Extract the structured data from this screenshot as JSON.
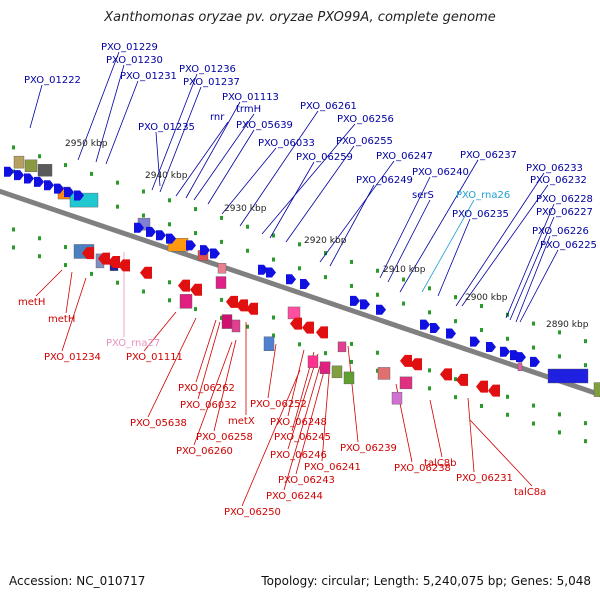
{
  "title": "Xanthomonas oryzae pv. oryzae PXO99A, complete genome",
  "accession": "Accession: NC_010717",
  "summary": "Topology: circular; Length: 5,240,075 bp; Genes: 5,048",
  "colors": {
    "backbone": "#808080",
    "forward_gene": "#1010e0",
    "reverse_gene": "#e01010",
    "forward_label": "#0000a0",
    "reverse_label": "#d00000",
    "rna_forward_label": "#20a0d0",
    "rna_reverse_label": "#e890c0",
    "tick": "#2a9a2a"
  },
  "kbp_ticks": [
    "2950 kbp",
    "2940 kbp",
    "2930 kbp",
    "2920 kbp",
    "2910 kbp",
    "2900 kbp",
    "2890 kbp"
  ],
  "forward_labels": [
    {
      "text": "PXO_01222",
      "kind": "gene"
    },
    {
      "text": "PXO_01229",
      "kind": "gene"
    },
    {
      "text": "PXO_01230",
      "kind": "gene"
    },
    {
      "text": "PXO_01231",
      "kind": "gene"
    },
    {
      "text": "PXO_01236",
      "kind": "gene"
    },
    {
      "text": "PXO_01237",
      "kind": "gene"
    },
    {
      "text": "PXO_01113",
      "kind": "gene"
    },
    {
      "text": "trmH",
      "kind": "gene"
    },
    {
      "text": "rnr",
      "kind": "gene"
    },
    {
      "text": "PXO_01235",
      "kind": "gene"
    },
    {
      "text": "PXO_05639",
      "kind": "gene"
    },
    {
      "text": "PXO_06261",
      "kind": "gene"
    },
    {
      "text": "PXO_06256",
      "kind": "gene"
    },
    {
      "text": "PXO_06033",
      "kind": "gene"
    },
    {
      "text": "PXO_06255",
      "kind": "gene"
    },
    {
      "text": "PXO_06259",
      "kind": "gene"
    },
    {
      "text": "PXO_06247",
      "kind": "gene"
    },
    {
      "text": "PXO_06237",
      "kind": "gene"
    },
    {
      "text": "PXO_06240",
      "kind": "gene"
    },
    {
      "text": "PXO_06233",
      "kind": "gene"
    },
    {
      "text": "PXO_06249",
      "kind": "gene"
    },
    {
      "text": "PXO_06232",
      "kind": "gene"
    },
    {
      "text": "PXO_rna26",
      "kind": "rna"
    },
    {
      "text": "serS",
      "kind": "gene"
    },
    {
      "text": "PXO_06228",
      "kind": "gene"
    },
    {
      "text": "PXO_06235",
      "kind": "gene"
    },
    {
      "text": "PXO_06227",
      "kind": "gene"
    },
    {
      "text": "PXO_06226",
      "kind": "gene"
    },
    {
      "text": "PXO_06225",
      "kind": "gene"
    }
  ],
  "reverse_labels": [
    {
      "text": "metH",
      "kind": "gene"
    },
    {
      "text": "metH",
      "kind": "gene"
    },
    {
      "text": "PXO_rna27",
      "kind": "rna"
    },
    {
      "text": "PXO_01234",
      "kind": "gene"
    },
    {
      "text": "PXO_01111",
      "kind": "gene"
    },
    {
      "text": "PXO_06262",
      "kind": "gene"
    },
    {
      "text": "PXO_06032",
      "kind": "gene"
    },
    {
      "text": "metX",
      "kind": "gene"
    },
    {
      "text": "PXO_05638",
      "kind": "gene"
    },
    {
      "text": "PXO_06252",
      "kind": "gene"
    },
    {
      "text": "PXO_06248",
      "kind": "gene"
    },
    {
      "text": "PXO_06258",
      "kind": "gene"
    },
    {
      "text": "PXO_06245",
      "kind": "gene"
    },
    {
      "text": "PXO_06260",
      "kind": "gene"
    },
    {
      "text": "PXO_06246",
      "kind": "gene"
    },
    {
      "text": "PXO_06239",
      "kind": "gene"
    },
    {
      "text": "PXO_06241",
      "kind": "gene"
    },
    {
      "text": "PXO_06238",
      "kind": "gene"
    },
    {
      "text": "talC8b",
      "kind": "gene"
    },
    {
      "text": "PXO_06243",
      "kind": "gene"
    },
    {
      "text": "PXO_06231",
      "kind": "gene"
    },
    {
      "text": "PXO_06244",
      "kind": "gene"
    },
    {
      "text": "talC8a",
      "kind": "gene"
    },
    {
      "text": "PXO_06250",
      "kind": "gene"
    }
  ]
}
